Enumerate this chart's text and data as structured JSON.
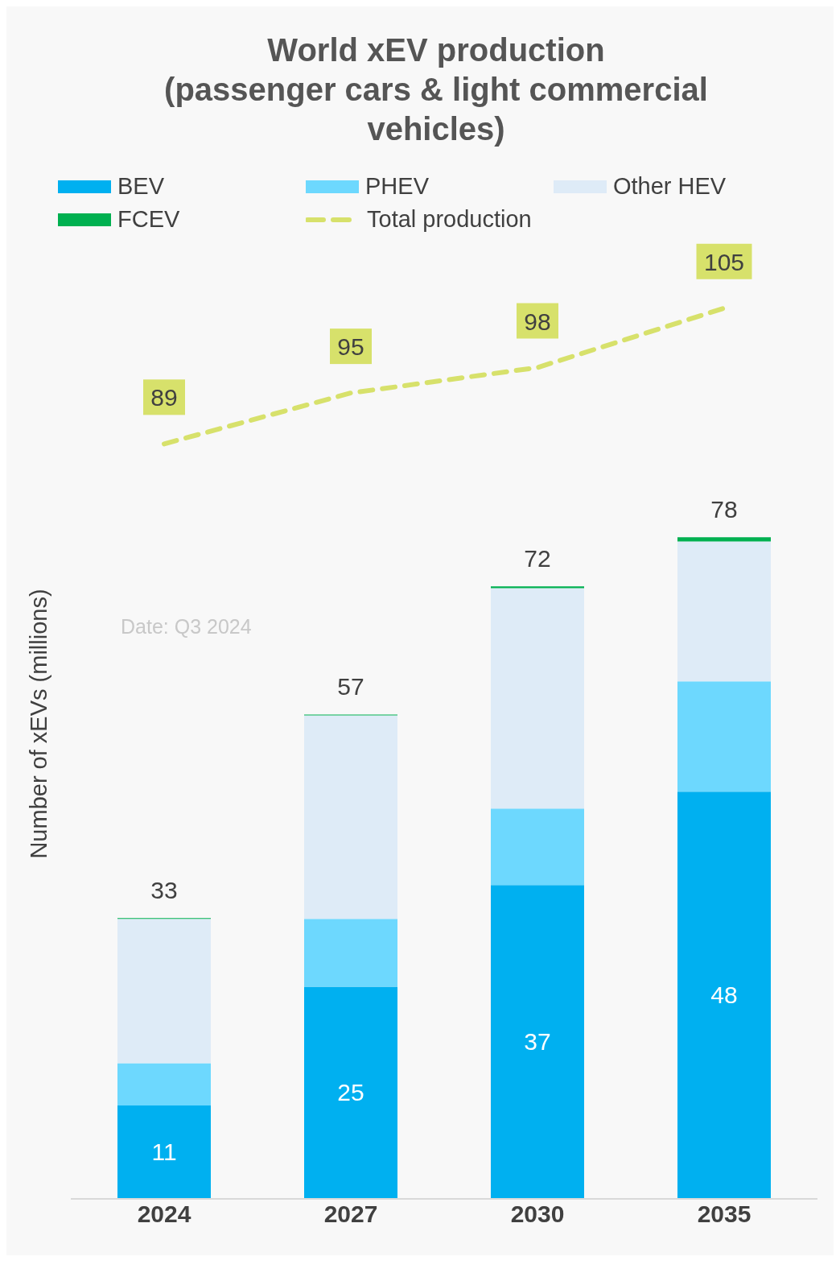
{
  "chart_data": {
    "type": "bar",
    "title": "World xEV production\n(passenger cars & light commercial\nvehicles)",
    "ylabel": "Number of xEVs (millions)",
    "categories": [
      "2024",
      "2027",
      "2030",
      "2035"
    ],
    "stacked": true,
    "ylim": [
      0,
      112
    ],
    "legend": "top",
    "series": [
      {
        "name": "BEV",
        "color": "#00b0f0",
        "values": [
          11,
          25,
          37,
          48
        ],
        "value_labels": [
          "11",
          "25",
          "37",
          "48"
        ]
      },
      {
        "name": "PHEV",
        "color": "#6dd8fe",
        "values": [
          5,
          8,
          9,
          13
        ]
      },
      {
        "name": "Other HEV",
        "color": "#deebf7",
        "values": [
          17,
          24,
          26,
          16.5
        ]
      },
      {
        "name": "FCEV",
        "color": "#00b050",
        "values": [
          0.1,
          0.1,
          0.2,
          0.5
        ]
      },
      {
        "name": "Total production",
        "type": "line",
        "line_style": "dashed",
        "color": "#d7e16b",
        "values": [
          89,
          95,
          98,
          105
        ],
        "value_labels": [
          "89",
          "95",
          "98",
          "105"
        ]
      }
    ],
    "totals": [
      "33",
      "57",
      "72",
      "78"
    ],
    "annotations": [
      "Date: Q3 2024"
    ]
  }
}
